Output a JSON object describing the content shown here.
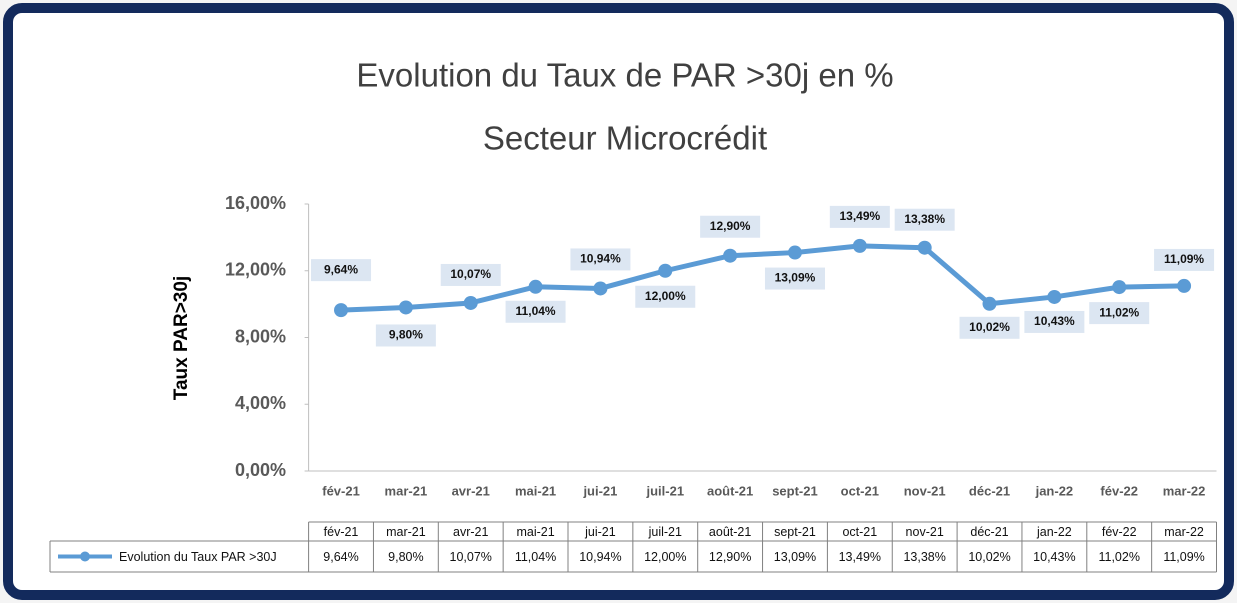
{
  "chart_data": {
    "type": "line",
    "title": "Evolution du Taux de PAR >30j en %",
    "subtitle": "Secteur Microcrédit",
    "y_axis_label": "Taux PAR>30j",
    "categories": [
      "fév-21",
      "mar-21",
      "avr-21",
      "mai-21",
      "jui-21",
      "juil-21",
      "août-21",
      "sept-21",
      "oct-21",
      "nov-21",
      "déc-21",
      "jan-22",
      "fév-22",
      "mar-22"
    ],
    "series": [
      {
        "name": "Evolution du Taux PAR >30J",
        "color": "#5b9bd5",
        "values": [
          9.64,
          9.8,
          10.07,
          11.04,
          10.94,
          12.0,
          12.9,
          13.09,
          13.49,
          13.38,
          10.02,
          10.43,
          11.02,
          11.09
        ],
        "value_labels": [
          "9,64%",
          "9,80%",
          "10,07%",
          "11,04%",
          "10,94%",
          "12,00%",
          "12,90%",
          "13,09%",
          "13,49%",
          "13,38%",
          "10,02%",
          "10,43%",
          "11,02%",
          "11,09%"
        ]
      }
    ],
    "ylim": [
      0,
      16
    ],
    "yticks": [
      {
        "value": 0,
        "label": "0,00%"
      },
      {
        "value": 4,
        "label": "4,00%"
      },
      {
        "value": 8,
        "label": "8,00%"
      },
      {
        "value": 12,
        "label": "12,00%"
      },
      {
        "value": 16,
        "label": "16,00%"
      }
    ],
    "grid": false
  }
}
